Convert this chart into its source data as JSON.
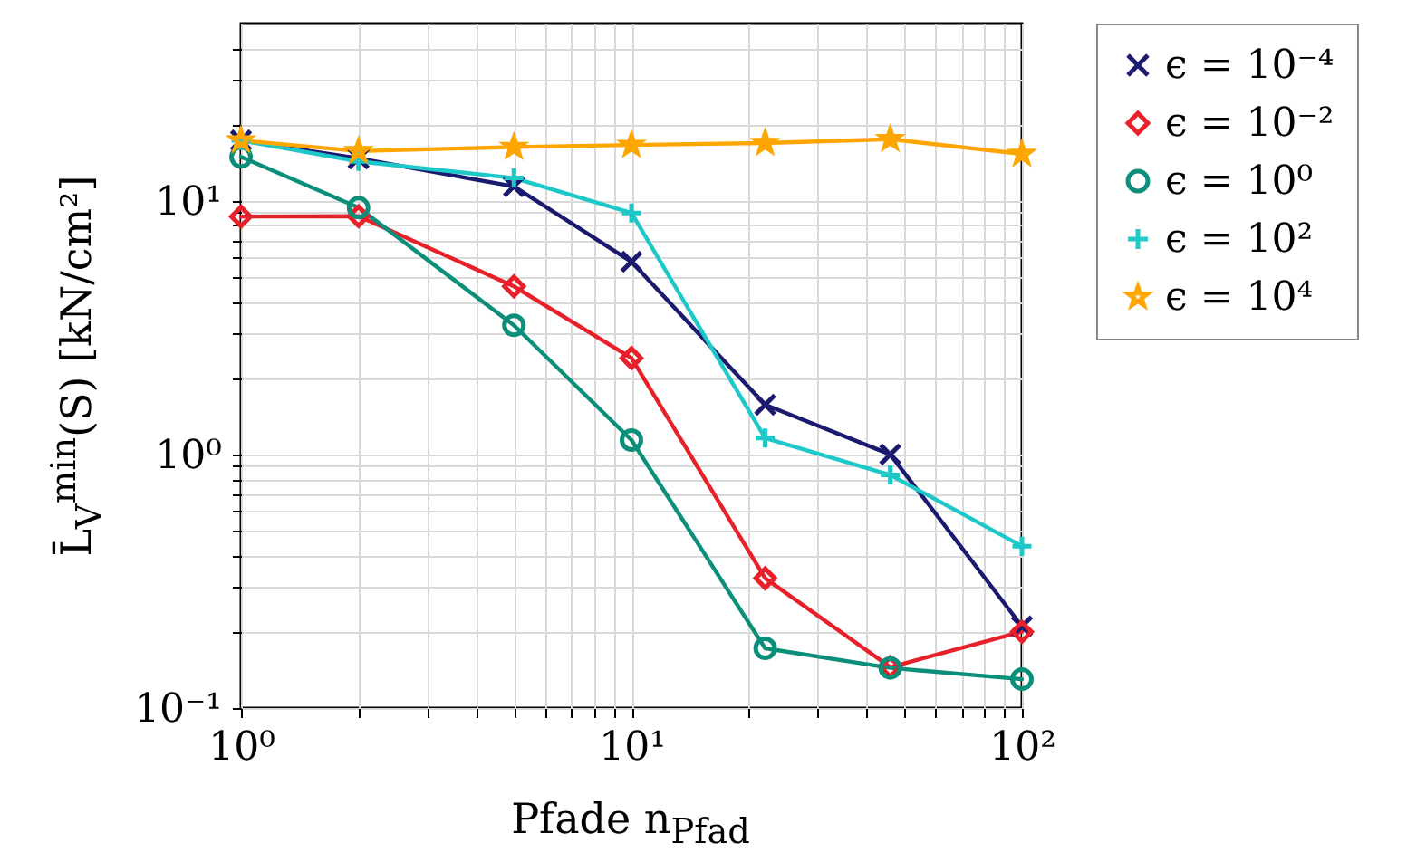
{
  "chart_data": {
    "type": "line",
    "xlabel": "Pfade n$_{Pfad}$",
    "ylabel": "L̄$_{V}$$^{min}$(S) [kN/cm²]",
    "x": [
      1,
      2,
      5,
      10,
      22,
      46,
      100
    ],
    "log": "xy",
    "grid": true,
    "legend": "top right",
    "xlim": [
      1,
      100
    ],
    "ylim": [
      0.1,
      50
    ],
    "xticks": [
      {
        "value": 1,
        "label": "10⁰"
      },
      {
        "value": 2,
        "label": null
      },
      {
        "value": 3,
        "label": null
      },
      {
        "value": 4,
        "label": null
      },
      {
        "value": 5,
        "label": null
      },
      {
        "value": 6,
        "label": null
      },
      {
        "value": 7,
        "label": null
      },
      {
        "value": 8,
        "label": null
      },
      {
        "value": 9,
        "label": null
      },
      {
        "value": 10,
        "label": "10¹"
      },
      {
        "value": 20,
        "label": null
      },
      {
        "value": 30,
        "label": null
      },
      {
        "value": 40,
        "label": null
      },
      {
        "value": 50,
        "label": null
      },
      {
        "value": 60,
        "label": null
      },
      {
        "value": 70,
        "label": null
      },
      {
        "value": 80,
        "label": null
      },
      {
        "value": 90,
        "label": null
      },
      {
        "value": 100,
        "label": "10²"
      }
    ],
    "yticks": [
      {
        "value": 0.1,
        "label": "10⁻¹"
      },
      {
        "value": 0.2,
        "label": null
      },
      {
        "value": 0.3,
        "label": null
      },
      {
        "value": 0.4,
        "label": null
      },
      {
        "value": 0.5,
        "label": null
      },
      {
        "value": 0.6,
        "label": null
      },
      {
        "value": 0.7,
        "label": null
      },
      {
        "value": 0.8,
        "label": null
      },
      {
        "value": 0.9,
        "label": null
      },
      {
        "value": 1,
        "label": "10⁰"
      },
      {
        "value": 2,
        "label": null
      },
      {
        "value": 3,
        "label": null
      },
      {
        "value": 4,
        "label": null
      },
      {
        "value": 5,
        "label": null
      },
      {
        "value": 6,
        "label": null
      },
      {
        "value": 7,
        "label": null
      },
      {
        "value": 8,
        "label": null
      },
      {
        "value": 9,
        "label": null
      },
      {
        "value": 10,
        "label": "10¹"
      },
      {
        "value": 20,
        "label": null
      },
      {
        "value": 30,
        "label": null
      },
      {
        "value": 40,
        "label": null
      }
    ],
    "series": [
      {
        "name": "ϵ = 10⁻⁴",
        "color": "#1a1a6e",
        "marker": "cross",
        "values": [
          17.3,
          14.7,
          11.4,
          5.75,
          1.57,
          1.0,
          0.21
        ]
      },
      {
        "name": "ϵ = 10⁻²",
        "color": "#e8202a",
        "marker": "diamond",
        "values": [
          8.67,
          8.7,
          4.6,
          2.4,
          0.325,
          0.145,
          0.2
        ]
      },
      {
        "name": "ϵ = 10⁰",
        "color": "#0b8f7a",
        "marker": "circle",
        "values": [
          14.9,
          9.4,
          3.23,
          1.14,
          0.172,
          0.144,
          0.13
        ]
      },
      {
        "name": "ϵ = 10²",
        "color": "#1ec8c8",
        "marker": "plus",
        "values": [
          17.3,
          14.3,
          12.3,
          8.96,
          1.16,
          0.83,
          0.435
        ]
      },
      {
        "name": "ϵ = 10⁴",
        "color": "#ffa500",
        "marker": "star",
        "values": [
          17.3,
          15.7,
          16.3,
          16.6,
          16.9,
          17.5,
          15.3
        ]
      }
    ]
  }
}
